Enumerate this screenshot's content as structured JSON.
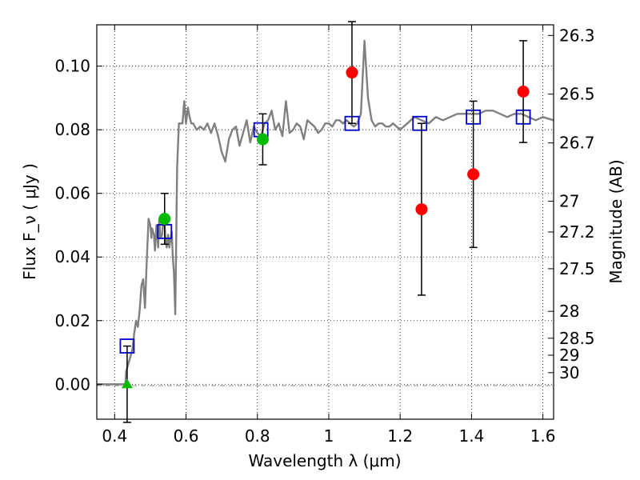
{
  "chart_data": {
    "type": "scatter",
    "title": "",
    "xlabel": "Wavelength  λ (μm)",
    "ylabel": "Flux  F_ν  ( μJy )",
    "ylabel_right": "Magnitude (AB)",
    "xlim": [
      0.35,
      1.63
    ],
    "ylim": [
      -0.011,
      0.113
    ],
    "grid": true,
    "x_ticks": [
      0.4,
      0.6,
      0.8,
      1.0,
      1.2,
      1.4,
      1.6
    ],
    "x_tick_labels": [
      "0.4",
      "0.6",
      "0.8",
      "1",
      "1.2",
      "1.4",
      "1.6"
    ],
    "y_ticks": [
      0.0,
      0.02,
      0.04,
      0.06,
      0.08,
      0.1
    ],
    "y_tick_labels": [
      "0.00",
      "0.02",
      "0.04",
      "0.06",
      "0.08",
      "0.10"
    ],
    "mag_ticks": [
      "26.3",
      "26.5",
      "26.7",
      "27",
      "27.2",
      "27.5",
      "28",
      "28.5",
      "29",
      "30"
    ],
    "colors": {
      "sed": "#808080",
      "model": "#0000cc",
      "detection": "#ff0000",
      "green": "#00bb00",
      "error": "#000000"
    },
    "series": [
      {
        "name": "SED model spectrum",
        "style": "line",
        "x": [
          0.35,
          0.43,
          0.432,
          0.44,
          0.45,
          0.455,
          0.46,
          0.465,
          0.47,
          0.475,
          0.48,
          0.485,
          0.49,
          0.495,
          0.5,
          0.503,
          0.505,
          0.51,
          0.513,
          0.517,
          0.52,
          0.522,
          0.525,
          0.528,
          0.53,
          0.533,
          0.536,
          0.54,
          0.543,
          0.546,
          0.55,
          0.553,
          0.556,
          0.56,
          0.563,
          0.566,
          0.57,
          0.575,
          0.58,
          0.585,
          0.59,
          0.595,
          0.6,
          0.605,
          0.61,
          0.615,
          0.62,
          0.63,
          0.64,
          0.65,
          0.66,
          0.67,
          0.68,
          0.69,
          0.7,
          0.71,
          0.72,
          0.73,
          0.74,
          0.75,
          0.76,
          0.77,
          0.78,
          0.79,
          0.8,
          0.81,
          0.82,
          0.83,
          0.84,
          0.85,
          0.86,
          0.87,
          0.88,
          0.89,
          0.9,
          0.91,
          0.92,
          0.93,
          0.94,
          0.95,
          0.96,
          0.97,
          0.98,
          0.99,
          1.0,
          1.01,
          1.02,
          1.03,
          1.04,
          1.05,
          1.06,
          1.07,
          1.08,
          1.09,
          1.1,
          1.11,
          1.12,
          1.13,
          1.14,
          1.15,
          1.16,
          1.17,
          1.18,
          1.19,
          1.2,
          1.22,
          1.24,
          1.26,
          1.28,
          1.3,
          1.32,
          1.34,
          1.36,
          1.38,
          1.4,
          1.42,
          1.44,
          1.46,
          1.48,
          1.5,
          1.52,
          1.54,
          1.56,
          1.58,
          1.6,
          1.63
        ],
        "y": [
          0.0,
          0.0,
          0.004,
          0.007,
          0.011,
          0.016,
          0.02,
          0.018,
          0.023,
          0.031,
          0.033,
          0.024,
          0.039,
          0.052,
          0.05,
          0.046,
          0.049,
          0.047,
          0.042,
          0.05,
          0.046,
          0.043,
          0.052,
          0.046,
          0.046,
          0.047,
          0.051,
          0.05,
          0.045,
          0.043,
          0.047,
          0.043,
          0.045,
          0.048,
          0.04,
          0.035,
          0.022,
          0.068,
          0.082,
          0.082,
          0.082,
          0.089,
          0.082,
          0.087,
          0.084,
          0.082,
          0.082,
          0.08,
          0.081,
          0.08,
          0.082,
          0.079,
          0.082,
          0.078,
          0.073,
          0.07,
          0.077,
          0.08,
          0.081,
          0.075,
          0.079,
          0.083,
          0.076,
          0.081,
          0.079,
          0.078,
          0.082,
          0.083,
          0.086,
          0.08,
          0.082,
          0.078,
          0.089,
          0.079,
          0.08,
          0.082,
          0.081,
          0.077,
          0.083,
          0.082,
          0.081,
          0.079,
          0.08,
          0.082,
          0.082,
          0.081,
          0.083,
          0.083,
          0.082,
          0.083,
          0.082,
          0.081,
          0.082,
          0.085,
          0.108,
          0.09,
          0.083,
          0.081,
          0.082,
          0.082,
          0.081,
          0.081,
          0.082,
          0.081,
          0.08,
          0.082,
          0.084,
          0.083,
          0.082,
          0.084,
          0.083,
          0.084,
          0.085,
          0.085,
          0.085,
          0.085,
          0.086,
          0.086,
          0.085,
          0.084,
          0.085,
          0.085,
          0.084,
          0.083,
          0.084,
          0.083
        ]
      },
      {
        "name": "Model photometry",
        "style": "open-square",
        "x": [
          0.435,
          0.54,
          0.81,
          1.065,
          1.255,
          1.405,
          1.545
        ],
        "y": [
          0.012,
          0.048,
          0.08,
          0.082,
          0.082,
          0.084,
          0.084
        ]
      },
      {
        "name": "Detections",
        "style": "circle",
        "x": [
          1.065,
          1.26,
          1.405,
          1.545
        ],
        "y": [
          0.098,
          0.055,
          0.066,
          0.092
        ],
        "err": [
          0.016,
          0.027,
          0.023,
          0.016
        ]
      },
      {
        "name": "Green detections",
        "style": "circle",
        "x": [
          0.54,
          0.815
        ],
        "y": [
          0.052,
          0.077
        ],
        "err": [
          0.008,
          0.008
        ]
      },
      {
        "name": "Upper limit",
        "style": "triangle",
        "x": [
          0.435
        ],
        "y": [
          0.0
        ],
        "err": [
          0.012
        ]
      }
    ]
  }
}
